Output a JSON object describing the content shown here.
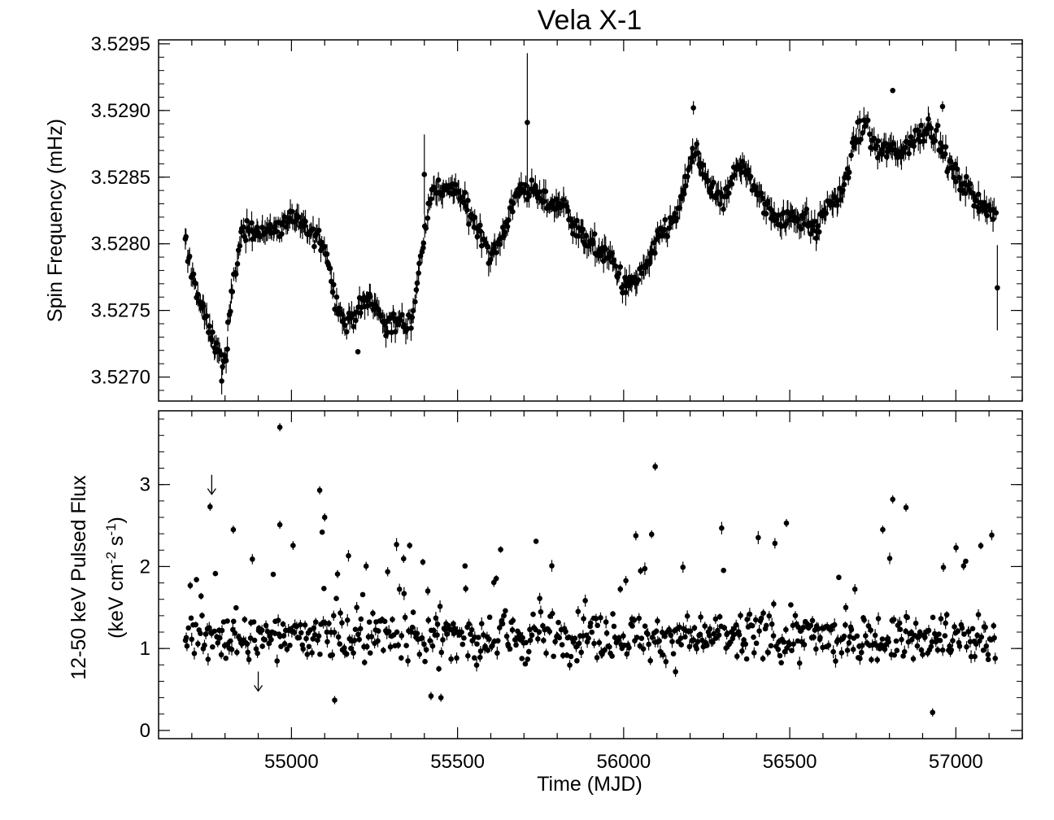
{
  "chart_data": [
    {
      "panel": "top",
      "type": "scatter",
      "title": "Vela X-1",
      "xlabel": "",
      "ylabel": "Spin Frequency (mHz)",
      "xlim": [
        54600,
        57200
      ],
      "ylim": [
        3.52682,
        3.52953
      ],
      "xticks": [
        55000,
        55500,
        56000,
        56500,
        57000
      ],
      "yticks": [
        "3.5270",
        "3.5275",
        "3.5280",
        "3.5285",
        "3.5290",
        "3.5295"
      ],
      "error_bars": true,
      "trend": {
        "x": [
          54680,
          54720,
          54760,
          54800,
          54820,
          54850,
          54900,
          54950,
          55000,
          55050,
          55100,
          55130,
          55160,
          55200,
          55240,
          55280,
          55320,
          55360,
          55390,
          55420,
          55460,
          55500,
          55540,
          55570,
          55600,
          55640,
          55680,
          55720,
          55780,
          55820,
          55860,
          55900,
          55960,
          56000,
          56040,
          56080,
          56120,
          56160,
          56200,
          56220,
          56260,
          56300,
          56340,
          56380,
          56420,
          56460,
          56500,
          56540,
          56580,
          56620,
          56660,
          56700,
          56730,
          56760,
          56800,
          56840,
          56880,
          56920,
          56960,
          57000,
          57040,
          57080,
          57120
        ],
        "y": [
          3.528,
          3.5276,
          3.5273,
          3.5271,
          3.5276,
          3.5281,
          3.5281,
          3.5281,
          3.5282,
          3.5281,
          3.528,
          3.5276,
          3.5274,
          3.5275,
          3.5276,
          3.5274,
          3.5274,
          3.5274,
          3.5279,
          3.5284,
          3.5284,
          3.5284,
          3.5282,
          3.5281,
          3.5279,
          3.5281,
          3.5284,
          3.5284,
          3.5283,
          3.5283,
          3.5281,
          3.528,
          3.5279,
          3.5277,
          3.5277,
          3.5279,
          3.5281,
          3.5282,
          3.5286,
          3.5287,
          3.5284,
          3.5283,
          3.5286,
          3.5285,
          3.5283,
          3.5282,
          3.5282,
          3.5282,
          3.5281,
          3.5283,
          3.5284,
          3.5288,
          3.5289,
          3.5287,
          3.5287,
          3.5287,
          3.5288,
          3.5289,
          3.5287,
          3.5285,
          3.5284,
          3.5283,
          3.5282
        ],
        "jitter": 0.00013
      },
      "outliers": [
        {
          "x": 55710,
          "y": 3.52891,
          "err": 0.00052
        },
        {
          "x": 56810,
          "y": 3.52915,
          "err": 2e-05
        },
        {
          "x": 57125,
          "y": 3.52767,
          "err": 0.00032
        },
        {
          "x": 56210,
          "y": 3.52902,
          "err": 5e-05
        },
        {
          "x": 56960,
          "y": 3.52903,
          "err": 4e-05
        },
        {
          "x": 55200,
          "y": 3.52719,
          "err": 2e-05
        },
        {
          "x": 54790,
          "y": 3.52697,
          "err": 0.0001
        },
        {
          "x": 55400,
          "y": 3.52852,
          "err": 0.0003
        }
      ],
      "n_points": 700
    },
    {
      "panel": "bottom",
      "type": "scatter",
      "title": "",
      "xlabel": "Time (MJD)",
      "ylabel_line1": "12-50 keV Pulsed Flux",
      "ylabel_line2_parts": [
        "(keV cm",
        "-2",
        " s",
        "-1",
        ")"
      ],
      "xlim": [
        54600,
        57200
      ],
      "ylim": [
        -0.1,
        3.9
      ],
      "xticks": [
        55000,
        55500,
        56000,
        56500,
        57000
      ],
      "yticks": [
        "0",
        "1",
        "2",
        "3"
      ],
      "error_bars": true,
      "baseline": 1.15,
      "spread": 0.3,
      "outliers": [
        {
          "x": 54965,
          "y": 3.7
        },
        {
          "x": 56095,
          "y": 3.22
        },
        {
          "x": 55085,
          "y": 2.93
        },
        {
          "x": 54755,
          "y": 2.73
        },
        {
          "x": 56810,
          "y": 2.82
        },
        {
          "x": 56850,
          "y": 2.72
        },
        {
          "x": 56490,
          "y": 2.53
        },
        {
          "x": 54965,
          "y": 2.51
        },
        {
          "x": 55100,
          "y": 2.6
        },
        {
          "x": 54825,
          "y": 2.45
        },
        {
          "x": 56780,
          "y": 2.45
        },
        {
          "x": 56930,
          "y": 0.22
        },
        {
          "x": 55130,
          "y": 0.37
        },
        {
          "x": 55420,
          "y": 0.42
        },
        {
          "x": 55450,
          "y": 0.4
        }
      ],
      "upper_limits": [
        {
          "x": 54760,
          "y": 3.0
        },
        {
          "x": 54900,
          "y": 0.6
        }
      ],
      "n_points": 700
    }
  ]
}
